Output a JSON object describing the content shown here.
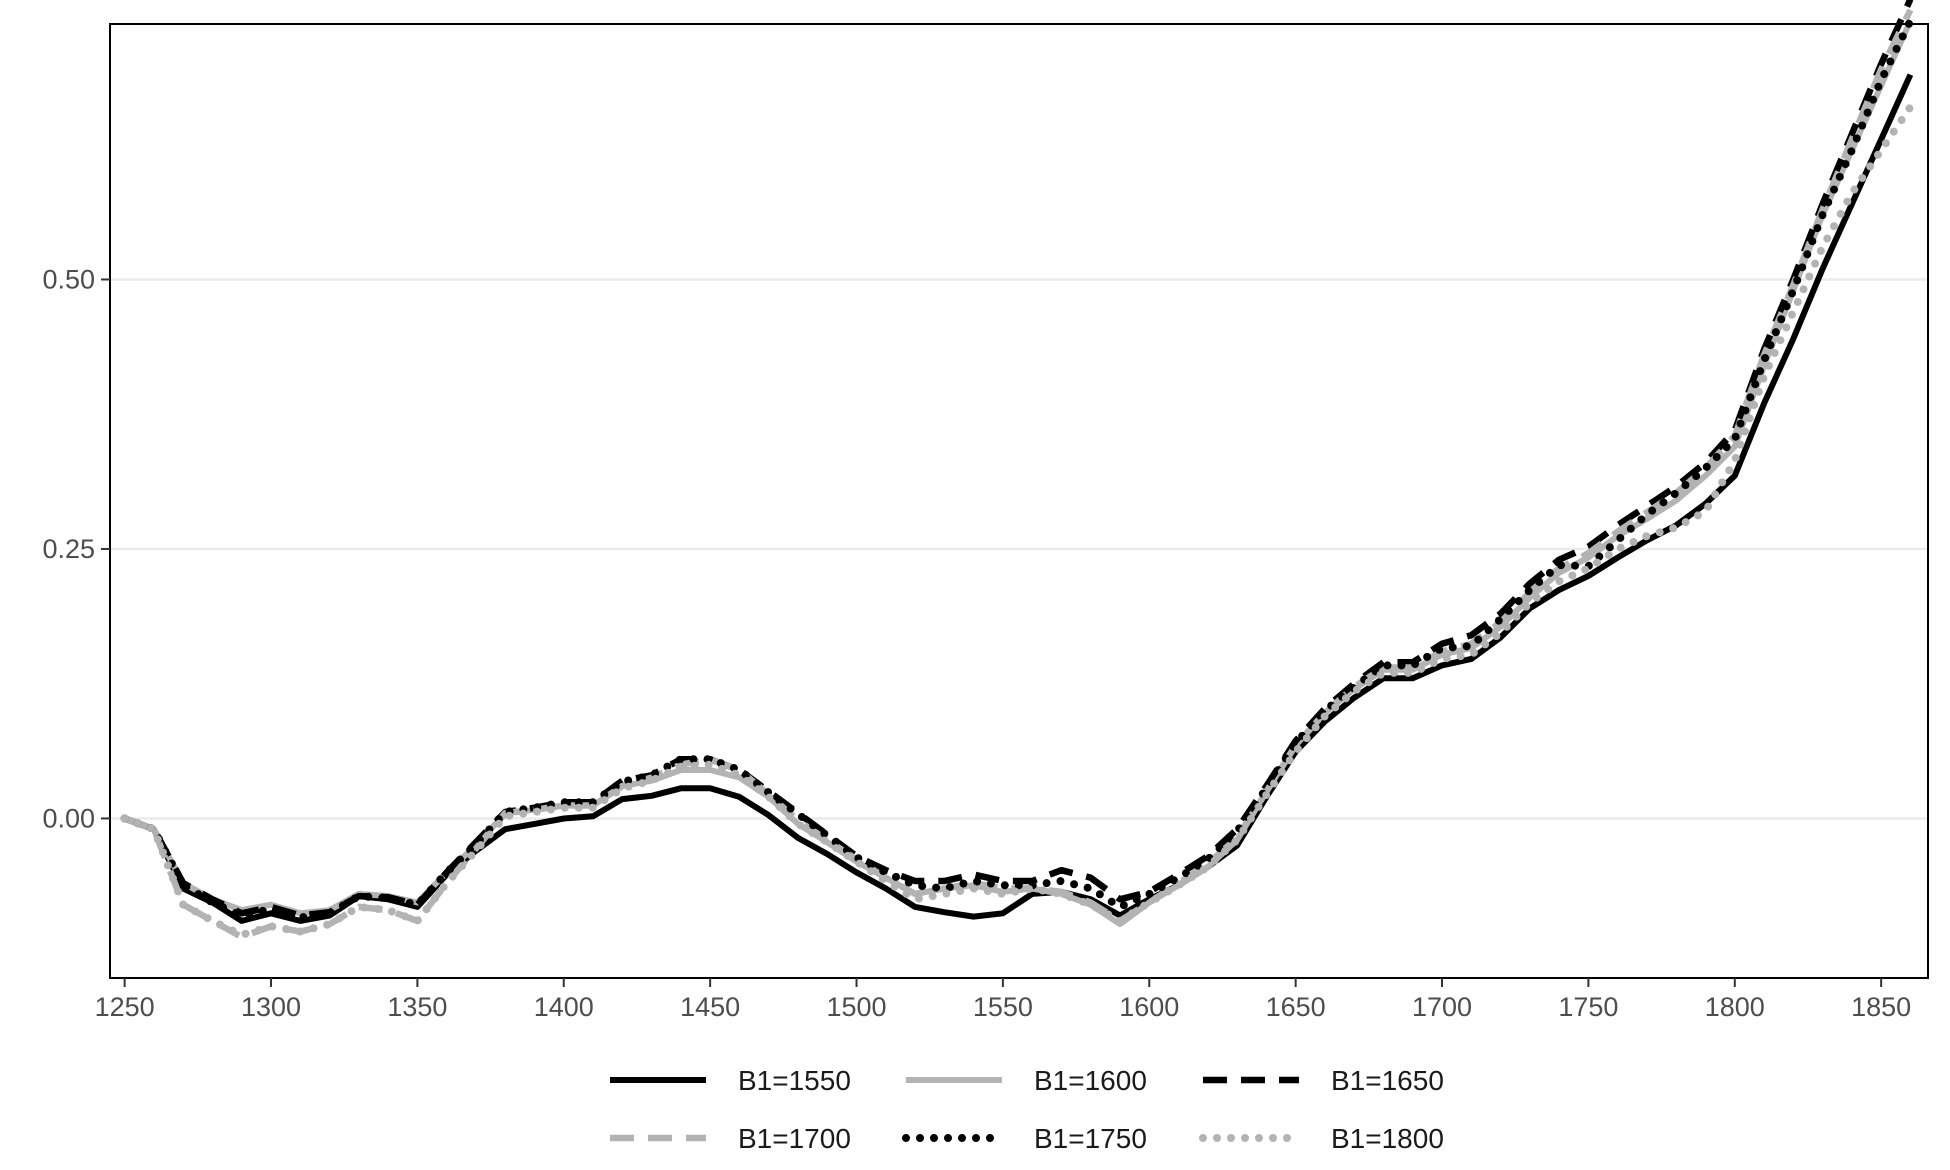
{
  "chart_data": {
    "type": "line",
    "title": "",
    "xlabel": "",
    "ylabel": "",
    "xlim": [
      1245,
      1866
    ],
    "ylim": [
      -0.148,
      0.737
    ],
    "xticks": [
      1250,
      1300,
      1350,
      1400,
      1450,
      1500,
      1550,
      1600,
      1650,
      1700,
      1750,
      1800,
      1850
    ],
    "yticks": [
      0.0,
      0.25,
      0.5
    ],
    "ytick_labels": [
      "0.00",
      "0.25",
      "0.50"
    ],
    "grid": "horizontal",
    "legend_position": "bottom",
    "series": [
      {
        "name": "B1=1550",
        "color": "#000000",
        "linestyle": "solid",
        "x": [
          1250,
          1260,
          1270,
          1280,
          1290,
          1300,
          1310,
          1320,
          1330,
          1340,
          1350,
          1360,
          1370,
          1380,
          1390,
          1400,
          1410,
          1420,
          1430,
          1440,
          1450,
          1460,
          1470,
          1480,
          1490,
          1500,
          1510,
          1520,
          1530,
          1540,
          1550,
          1560,
          1570,
          1580,
          1590,
          1600,
          1610,
          1620,
          1630,
          1640,
          1650,
          1660,
          1670,
          1680,
          1690,
          1700,
          1710,
          1720,
          1730,
          1740,
          1750,
          1760,
          1770,
          1780,
          1790,
          1800,
          1810,
          1820,
          1830,
          1840,
          1850,
          1860
        ],
        "y": [
          0.0,
          -0.01,
          -0.065,
          -0.078,
          -0.095,
          -0.088,
          -0.095,
          -0.09,
          -0.072,
          -0.075,
          -0.082,
          -0.052,
          -0.03,
          -0.01,
          -0.005,
          0.0,
          0.002,
          0.018,
          0.021,
          0.028,
          0.028,
          0.02,
          0.003,
          -0.018,
          -0.033,
          -0.05,
          -0.065,
          -0.082,
          -0.087,
          -0.091,
          -0.088,
          -0.07,
          -0.068,
          -0.075,
          -0.09,
          -0.075,
          -0.062,
          -0.045,
          -0.025,
          0.02,
          0.062,
          0.09,
          0.112,
          0.13,
          0.13,
          0.142,
          0.148,
          0.168,
          0.195,
          0.212,
          0.225,
          0.242,
          0.258,
          0.272,
          0.292,
          0.318,
          0.385,
          0.445,
          0.51,
          0.57,
          0.63,
          0.69
        ]
      },
      {
        "name": "B1=1600",
        "color": "#b3b3b3",
        "linestyle": "solid",
        "x": [
          1250,
          1260,
          1270,
          1280,
          1290,
          1300,
          1310,
          1320,
          1330,
          1340,
          1350,
          1360,
          1370,
          1380,
          1390,
          1400,
          1410,
          1420,
          1430,
          1440,
          1450,
          1460,
          1470,
          1480,
          1490,
          1500,
          1510,
          1520,
          1530,
          1540,
          1550,
          1560,
          1570,
          1580,
          1590,
          1600,
          1610,
          1620,
          1630,
          1640,
          1650,
          1660,
          1670,
          1680,
          1690,
          1700,
          1710,
          1720,
          1730,
          1740,
          1750,
          1760,
          1770,
          1780,
          1790,
          1800,
          1810,
          1820,
          1830,
          1840,
          1850,
          1860
        ],
        "y": [
          0.0,
          -0.01,
          -0.06,
          -0.075,
          -0.085,
          -0.08,
          -0.088,
          -0.085,
          -0.07,
          -0.072,
          -0.078,
          -0.05,
          -0.025,
          0.005,
          0.008,
          0.012,
          0.012,
          0.03,
          0.035,
          0.045,
          0.045,
          0.038,
          0.02,
          -0.005,
          -0.022,
          -0.04,
          -0.055,
          -0.07,
          -0.065,
          -0.062,
          -0.068,
          -0.065,
          -0.07,
          -0.08,
          -0.098,
          -0.078,
          -0.062,
          -0.045,
          -0.02,
          0.025,
          0.068,
          0.098,
          0.12,
          0.138,
          0.138,
          0.152,
          0.158,
          0.178,
          0.205,
          0.228,
          0.242,
          0.262,
          0.278,
          0.295,
          0.318,
          0.345,
          0.42,
          0.49,
          0.56,
          0.62,
          0.68,
          0.74
        ]
      },
      {
        "name": "B1=1650",
        "color": "#000000",
        "linestyle": "dashed",
        "x": [
          1250,
          1260,
          1270,
          1280,
          1290,
          1300,
          1310,
          1320,
          1330,
          1340,
          1350,
          1360,
          1370,
          1380,
          1390,
          1400,
          1410,
          1420,
          1430,
          1440,
          1450,
          1460,
          1470,
          1480,
          1490,
          1500,
          1510,
          1520,
          1530,
          1540,
          1550,
          1560,
          1570,
          1580,
          1590,
          1600,
          1610,
          1620,
          1630,
          1640,
          1650,
          1660,
          1670,
          1680,
          1690,
          1700,
          1710,
          1720,
          1730,
          1740,
          1750,
          1760,
          1770,
          1780,
          1790,
          1800,
          1810,
          1820,
          1830,
          1840,
          1850,
          1860
        ],
        "y": [
          0.0,
          -0.01,
          -0.06,
          -0.075,
          -0.088,
          -0.082,
          -0.09,
          -0.087,
          -0.072,
          -0.073,
          -0.08,
          -0.05,
          -0.022,
          0.006,
          0.01,
          0.015,
          0.015,
          0.035,
          0.04,
          0.055,
          0.055,
          0.045,
          0.025,
          0.005,
          -0.015,
          -0.035,
          -0.048,
          -0.058,
          -0.058,
          -0.052,
          -0.058,
          -0.058,
          -0.048,
          -0.055,
          -0.075,
          -0.068,
          -0.052,
          -0.035,
          -0.01,
          0.03,
          0.072,
          0.102,
          0.125,
          0.145,
          0.145,
          0.162,
          0.17,
          0.19,
          0.218,
          0.24,
          0.252,
          0.272,
          0.29,
          0.308,
          0.33,
          0.36,
          0.435,
          0.5,
          0.57,
          0.635,
          0.7,
          0.76
        ]
      },
      {
        "name": "B1=1700",
        "color": "#b3b3b3",
        "linestyle": "dashed",
        "x": [
          1250,
          1260,
          1270,
          1280,
          1290,
          1300,
          1310,
          1320,
          1330,
          1340,
          1350,
          1360,
          1370,
          1380,
          1390,
          1400,
          1410,
          1420,
          1430,
          1440,
          1450,
          1460,
          1470,
          1480,
          1490,
          1500,
          1510,
          1520,
          1530,
          1540,
          1550,
          1560,
          1570,
          1580,
          1590,
          1600,
          1610,
          1620,
          1630,
          1640,
          1650,
          1660,
          1670,
          1680,
          1690,
          1700,
          1710,
          1720,
          1730,
          1740,
          1750,
          1760,
          1770,
          1780,
          1790,
          1800,
          1810,
          1820,
          1830,
          1840,
          1850,
          1860
        ],
        "y": [
          0.0,
          -0.01,
          -0.08,
          -0.095,
          -0.11,
          -0.1,
          -0.105,
          -0.098,
          -0.082,
          -0.085,
          -0.095,
          -0.06,
          -0.028,
          0.005,
          0.008,
          0.012,
          0.012,
          0.03,
          0.038,
          0.05,
          0.055,
          0.045,
          0.022,
          -0.002,
          -0.02,
          -0.038,
          -0.055,
          -0.07,
          -0.065,
          -0.06,
          -0.065,
          -0.065,
          -0.068,
          -0.078,
          -0.095,
          -0.078,
          -0.06,
          -0.042,
          -0.018,
          0.025,
          0.068,
          0.098,
          0.122,
          0.14,
          0.14,
          0.155,
          0.162,
          0.182,
          0.21,
          0.232,
          0.246,
          0.266,
          0.284,
          0.302,
          0.325,
          0.355,
          0.43,
          0.495,
          0.565,
          0.63,
          0.695,
          0.75
        ]
      },
      {
        "name": "B1=1750",
        "color": "#000000",
        "linestyle": "dotted",
        "x": [
          1250,
          1260,
          1270,
          1280,
          1290,
          1300,
          1310,
          1320,
          1330,
          1340,
          1350,
          1360,
          1370,
          1380,
          1390,
          1400,
          1410,
          1420,
          1430,
          1440,
          1450,
          1460,
          1470,
          1480,
          1490,
          1500,
          1510,
          1520,
          1530,
          1540,
          1550,
          1560,
          1570,
          1580,
          1590,
          1600,
          1610,
          1620,
          1630,
          1640,
          1650,
          1660,
          1670,
          1680,
          1690,
          1700,
          1710,
          1720,
          1730,
          1740,
          1750,
          1760,
          1770,
          1780,
          1790,
          1800,
          1810,
          1820,
          1830,
          1840,
          1850,
          1860
        ],
        "y": [
          0.0,
          -0.01,
          -0.062,
          -0.078,
          -0.09,
          -0.084,
          -0.092,
          -0.088,
          -0.072,
          -0.074,
          -0.08,
          -0.05,
          -0.024,
          0.006,
          0.01,
          0.015,
          0.015,
          0.034,
          0.04,
          0.055,
          0.055,
          0.045,
          0.024,
          0.004,
          -0.016,
          -0.036,
          -0.05,
          -0.062,
          -0.065,
          -0.058,
          -0.062,
          -0.062,
          -0.058,
          -0.065,
          -0.082,
          -0.07,
          -0.055,
          -0.038,
          -0.012,
          0.028,
          0.07,
          0.1,
          0.122,
          0.142,
          0.142,
          0.158,
          0.16,
          0.185,
          0.212,
          0.235,
          0.234,
          0.258,
          0.282,
          0.302,
          0.325,
          0.352,
          0.425,
          0.49,
          0.56,
          0.62,
          0.685,
          0.74
        ]
      },
      {
        "name": "B1=1800",
        "color": "#b3b3b3",
        "linestyle": "dotted",
        "x": [
          1250,
          1260,
          1270,
          1280,
          1290,
          1300,
          1310,
          1320,
          1330,
          1340,
          1350,
          1360,
          1370,
          1380,
          1390,
          1400,
          1410,
          1420,
          1430,
          1440,
          1450,
          1460,
          1470,
          1480,
          1490,
          1500,
          1510,
          1520,
          1530,
          1540,
          1550,
          1560,
          1570,
          1580,
          1590,
          1600,
          1610,
          1620,
          1630,
          1640,
          1650,
          1660,
          1670,
          1680,
          1690,
          1700,
          1710,
          1720,
          1730,
          1740,
          1750,
          1760,
          1770,
          1780,
          1790,
          1800,
          1810,
          1820,
          1830,
          1840,
          1850,
          1860
        ],
        "y": [
          0.0,
          -0.01,
          -0.08,
          -0.095,
          -0.108,
          -0.1,
          -0.105,
          -0.098,
          -0.082,
          -0.085,
          -0.095,
          -0.06,
          -0.03,
          0.002,
          0.006,
          0.01,
          0.01,
          0.028,
          0.035,
          0.048,
          0.05,
          0.04,
          0.02,
          -0.005,
          -0.022,
          -0.04,
          -0.058,
          -0.075,
          -0.07,
          -0.065,
          -0.07,
          -0.065,
          -0.07,
          -0.08,
          -0.095,
          -0.078,
          -0.062,
          -0.045,
          -0.02,
          0.022,
          0.062,
          0.095,
          0.118,
          0.135,
          0.135,
          0.148,
          0.152,
          0.172,
          0.2,
          0.22,
          0.232,
          0.25,
          0.262,
          0.27,
          0.285,
          0.332,
          0.41,
          0.47,
          0.53,
          0.58,
          0.62,
          0.66
        ]
      }
    ]
  }
}
